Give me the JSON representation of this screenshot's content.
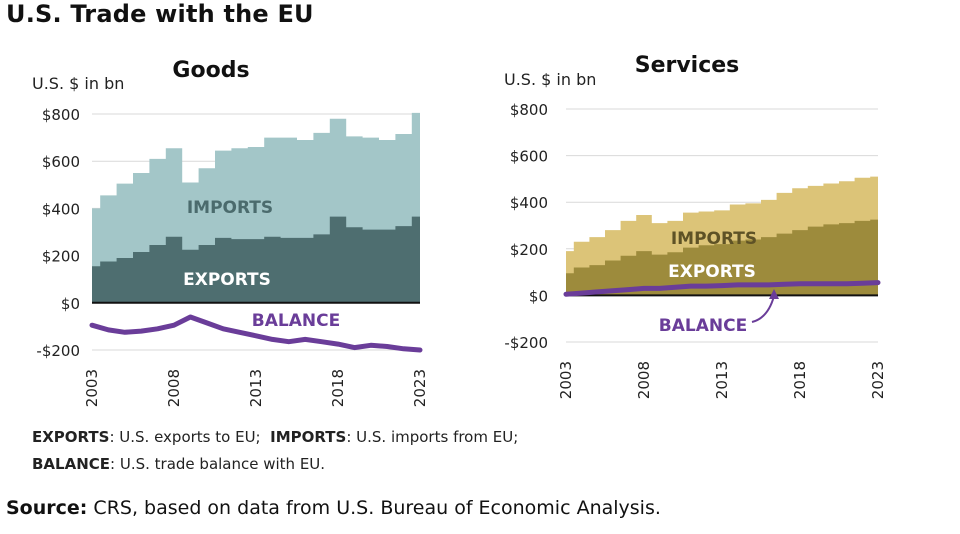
{
  "title": "U.S. Trade with the EU",
  "colors": {
    "goods_imports": "#a3c6c8",
    "goods_exports": "#4e6e70",
    "services_imports": "#dcc478",
    "services_exports": "#9d8b3c",
    "balance": "#6a3d99",
    "grid": "#d9d9d9",
    "zero_line": "#111111"
  },
  "chart_data": [
    {
      "type": "area",
      "title": "Goods",
      "ylabel": "U.S. $ in bn",
      "ylim": [
        -200,
        800
      ],
      "yticks": [
        800,
        600,
        400,
        200,
        0,
        -200
      ],
      "ytick_labels": [
        "$800",
        "$600",
        "$400",
        "$200",
        "$0",
        "-$200"
      ],
      "xtick_labels": [
        "2003",
        "2008",
        "2013",
        "2018",
        "2023"
      ],
      "grid": true,
      "x": [
        2003,
        2004,
        2005,
        2006,
        2007,
        2008,
        2009,
        2010,
        2011,
        2012,
        2013,
        2014,
        2015,
        2016,
        2017,
        2018,
        2019,
        2020,
        2021,
        2022,
        2023
      ],
      "series": [
        {
          "name": "IMPORTS",
          "values": [
            400,
            455,
            505,
            550,
            610,
            655,
            510,
            570,
            645,
            655,
            660,
            700,
            700,
            690,
            720,
            780,
            705,
            700,
            690,
            715,
            805
          ]
        },
        {
          "name": "EXPORTS",
          "values": [
            155,
            175,
            190,
            215,
            245,
            280,
            225,
            245,
            275,
            270,
            270,
            280,
            275,
            275,
            290,
            365,
            320,
            310,
            310,
            325,
            365
          ]
        },
        {
          "name": "BALANCE",
          "values": [
            -95,
            -115,
            -125,
            -120,
            -110,
            -95,
            -60,
            -85,
            -110,
            -125,
            -140,
            -155,
            -165,
            -155,
            -165,
            -175,
            -190,
            -180,
            -185,
            -195,
            -200
          ]
        }
      ]
    },
    {
      "type": "area",
      "title": "Services",
      "ylabel": "U.S. $ in bn",
      "ylim": [
        -200,
        800
      ],
      "yticks": [
        800,
        600,
        400,
        200,
        0,
        -200
      ],
      "ytick_labels": [
        "$800",
        "$600",
        "$400",
        "$200",
        "$0",
        "-$200"
      ],
      "xtick_labels": [
        "2003",
        "2008",
        "2013",
        "2018",
        "2023"
      ],
      "grid": true,
      "x": [
        2003,
        2004,
        2005,
        2006,
        2007,
        2008,
        2009,
        2010,
        2011,
        2012,
        2013,
        2014,
        2015,
        2016,
        2017,
        2018,
        2019,
        2020,
        2021,
        2022,
        2023
      ],
      "series": [
        {
          "name": "IMPORTS",
          "values": [
            190,
            230,
            250,
            280,
            320,
            345,
            310,
            320,
            355,
            360,
            365,
            390,
            395,
            410,
            440,
            460,
            470,
            480,
            490,
            505,
            510
          ]
        },
        {
          "name": "EXPORTS",
          "values": [
            95,
            120,
            130,
            150,
            170,
            190,
            175,
            185,
            205,
            215,
            220,
            235,
            240,
            250,
            265,
            280,
            295,
            305,
            310,
            320,
            325
          ]
        },
        {
          "name": "BALANCE",
          "values": [
            5,
            10,
            15,
            20,
            25,
            30,
            30,
            35,
            40,
            40,
            42,
            45,
            45,
            45,
            48,
            50,
            50,
            50,
            50,
            52,
            55
          ]
        }
      ]
    }
  ],
  "legend_note": {
    "exports_key": "EXPORTS",
    "exports_text": ": U.S. exports to EU;",
    "imports_key": "IMPORTS",
    "imports_text": ": U.S. imports from EU;",
    "balance_key": "BALANCE",
    "balance_text": ": U.S. trade balance with EU."
  },
  "source": {
    "label": "Source:",
    "text": " CRS, based on data from U.S. Bureau of Economic Analysis."
  }
}
